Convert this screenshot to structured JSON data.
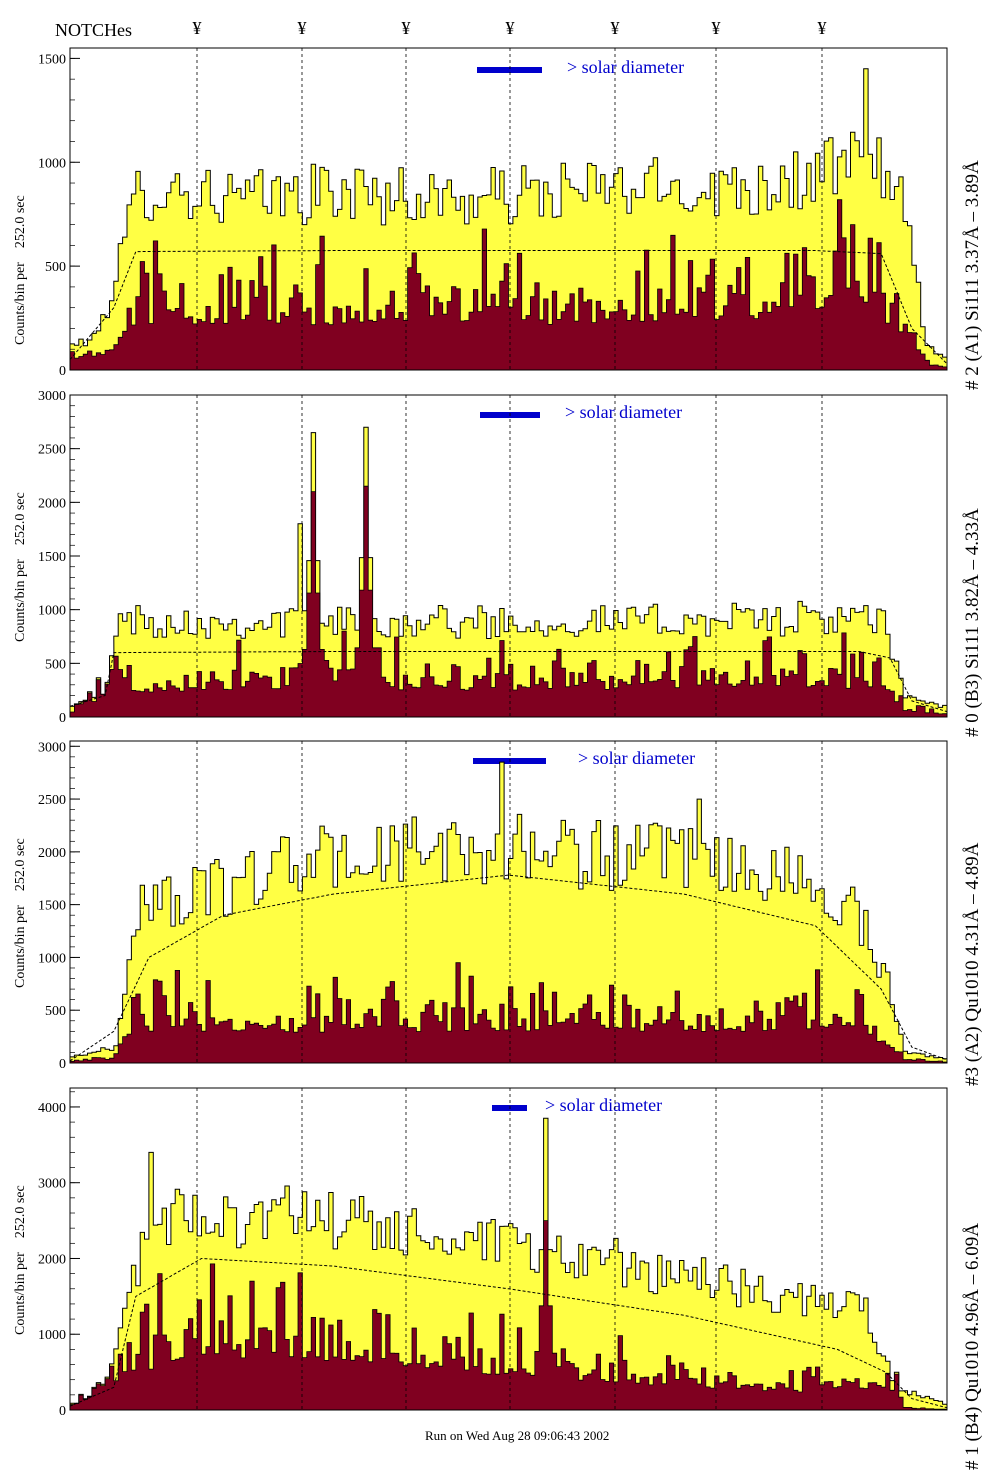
{
  "header": {
    "title": "NOTCHes",
    "notch_symbol": "¥",
    "notch_x": [
      197,
      302,
      406,
      510,
      615,
      716,
      822
    ]
  },
  "footer": {
    "text": "Run on Wed Aug 28 09:06:43 2002"
  },
  "colors": {
    "total_fill": "#ffff44",
    "dark_fill": "#800020",
    "axis": "#000000",
    "legend": "#0000cc"
  },
  "chart_data": [
    {
      "type": "bar",
      "title": "# 2 (A1) Si111  3.37Å – 3.89Å",
      "ylabel": "Counts/bin per",
      "yunit": "252.0 sec",
      "legend_text": "> solar diameter",
      "ylim": [
        0,
        1550
      ],
      "yticks": [
        0,
        500,
        1000,
        1500
      ],
      "bins": 200,
      "series": [
        {
          "name": "total",
          "profile": [
            [
              0,
              120
            ],
            [
              5,
              150
            ],
            [
              8,
              300
            ],
            [
              15,
              850
            ],
            [
              20,
              880
            ],
            [
              40,
              820
            ],
            [
              60,
              860
            ],
            [
              90,
              820
            ],
            [
              120,
              870
            ],
            [
              150,
              880
            ],
            [
              170,
              930
            ],
            [
              183,
              1050
            ],
            [
              188,
              900
            ],
            [
              192,
              500
            ],
            [
              195,
              120
            ],
            [
              200,
              40
            ]
          ],
          "peaks": [
            [
              181,
              1450
            ]
          ]
        },
        {
          "name": "dark",
          "profile": [
            [
              0,
              60
            ],
            [
              8,
              100
            ],
            [
              15,
              300
            ],
            [
              40,
              280
            ],
            [
              80,
              300
            ],
            [
              120,
              290
            ],
            [
              160,
              330
            ],
            [
              180,
              450
            ],
            [
              190,
              200
            ],
            [
              196,
              30
            ],
            [
              200,
              10
            ]
          ],
          "peaks": [
            [
              175,
              820
            ],
            [
              178,
              700
            ]
          ]
        }
      ],
      "smooth": [
        [
          0,
          50
        ],
        [
          10,
          300
        ],
        [
          15,
          570
        ],
        [
          60,
          575
        ],
        [
          120,
          575
        ],
        [
          170,
          575
        ],
        [
          185,
          560
        ],
        [
          192,
          200
        ],
        [
          200,
          30
        ]
      ]
    },
    {
      "type": "bar",
      "title": "# 0 (B3) Si111  3.82Å – 4.33Å",
      "ylabel": "Counts/bin per",
      "yunit": "252.0 sec",
      "legend_text": "> solar diameter",
      "ylim": [
        0,
        3000
      ],
      "yticks": [
        0,
        500,
        1000,
        1500,
        2000,
        2500,
        3000
      ],
      "bins": 200,
      "series": [
        {
          "name": "total",
          "profile": [
            [
              0,
              120
            ],
            [
              8,
              200
            ],
            [
              10,
              900
            ],
            [
              40,
              880
            ],
            [
              70,
              900
            ],
            [
              100,
              880
            ],
            [
              140,
              900
            ],
            [
              170,
              920
            ],
            [
              185,
              880
            ],
            [
              190,
              200
            ],
            [
              200,
              80
            ]
          ],
          "peaks": [
            [
              55,
              2650
            ],
            [
              67,
              2700
            ],
            [
              52,
              1800
            ]
          ]
        },
        {
          "name": "dark",
          "profile": [
            [
              0,
              60
            ],
            [
              10,
              300
            ],
            [
              50,
              350
            ],
            [
              80,
              330
            ],
            [
              120,
              340
            ],
            [
              160,
              380
            ],
            [
              185,
              330
            ],
            [
              190,
              80
            ],
            [
              200,
              20
            ]
          ],
          "peaks": [
            [
              55,
              2100
            ],
            [
              67,
              2150
            ],
            [
              62,
              800
            ]
          ]
        }
      ],
      "smooth": [
        [
          0,
          100
        ],
        [
          8,
          200
        ],
        [
          10,
          600
        ],
        [
          60,
          610
        ],
        [
          120,
          610
        ],
        [
          180,
          610
        ],
        [
          187,
          550
        ],
        [
          192,
          150
        ],
        [
          200,
          50
        ]
      ]
    },
    {
      "type": "bar",
      "title": "#3 (A2) Qu1010  4.31Å – 4.89Å",
      "ylabel": "Counts/bin per",
      "yunit": "252.0 sec",
      "legend_text": "> solar diameter",
      "ylim": [
        0,
        3050
      ],
      "yticks": [
        0,
        500,
        1000,
        1500,
        2000,
        2500,
        3000
      ],
      "bins": 200,
      "series": [
        {
          "name": "total",
          "profile": [
            [
              0,
              60
            ],
            [
              10,
              150
            ],
            [
              15,
              1500
            ],
            [
              30,
              1600
            ],
            [
              50,
              1900
            ],
            [
              80,
              2000
            ],
            [
              100,
              2050
            ],
            [
              130,
              1950
            ],
            [
              160,
              1800
            ],
            [
              178,
              1500
            ],
            [
              186,
              800
            ],
            [
              190,
              100
            ],
            [
              200,
              40
            ]
          ],
          "peaks": [
            [
              98,
              2850
            ],
            [
              143,
              2500
            ]
          ]
        },
        {
          "name": "dark",
          "profile": [
            [
              0,
              20
            ],
            [
              10,
              50
            ],
            [
              15,
              400
            ],
            [
              50,
              380
            ],
            [
              100,
              400
            ],
            [
              150,
              380
            ],
            [
              178,
              420
            ],
            [
              186,
              200
            ],
            [
              190,
              30
            ],
            [
              200,
              10
            ]
          ],
          "peaks": [
            [
              88,
              950
            ],
            [
              60,
              700
            ],
            [
              180,
              650
            ]
          ]
        }
      ],
      "smooth": [
        [
          0,
          20
        ],
        [
          10,
          300
        ],
        [
          18,
          1000
        ],
        [
          35,
          1400
        ],
        [
          60,
          1600
        ],
        [
          100,
          1780
        ],
        [
          140,
          1600
        ],
        [
          170,
          1300
        ],
        [
          185,
          700
        ],
        [
          192,
          150
        ],
        [
          200,
          30
        ]
      ]
    },
    {
      "type": "bar",
      "title": "# 1 (B4) Qu1010 4.96Å – 6.09Å",
      "ylabel": "Counts/bin per",
      "yunit": "252.0 sec",
      "legend_text": "> solar diameter",
      "ylim": [
        0,
        4250
      ],
      "yticks": [
        0,
        1000,
        2000,
        3000,
        4000
      ],
      "bins": 200,
      "series": [
        {
          "name": "total",
          "profile": [
            [
              0,
              80
            ],
            [
              8,
              120
            ],
            [
              12,
              1500
            ],
            [
              20,
              2500
            ],
            [
              40,
              2600
            ],
            [
              70,
              2400
            ],
            [
              100,
              2100
            ],
            [
              130,
              1900
            ],
            [
              160,
              1500
            ],
            [
              180,
              1400
            ],
            [
              188,
              300
            ],
            [
              200,
              60
            ]
          ],
          "peaks": [
            [
              108,
              3850
            ],
            [
              18,
              3400
            ]
          ]
        },
        {
          "name": "dark",
          "profile": [
            [
              0,
              40
            ],
            [
              12,
              600
            ],
            [
              30,
              900
            ],
            [
              60,
              800
            ],
            [
              100,
              600
            ],
            [
              140,
              400
            ],
            [
              170,
              300
            ],
            [
              186,
              400
            ],
            [
              190,
              30
            ],
            [
              200,
              10
            ]
          ],
          "peaks": [
            [
              108,
              2500
            ],
            [
              20,
              1800
            ]
          ]
        }
      ],
      "smooth": [
        [
          0,
          50
        ],
        [
          10,
          300
        ],
        [
          15,
          1500
        ],
        [
          30,
          2000
        ],
        [
          60,
          1900
        ],
        [
          100,
          1600
        ],
        [
          140,
          1250
        ],
        [
          175,
          800
        ],
        [
          186,
          500
        ],
        [
          192,
          150
        ],
        [
          200,
          30
        ]
      ]
    }
  ]
}
